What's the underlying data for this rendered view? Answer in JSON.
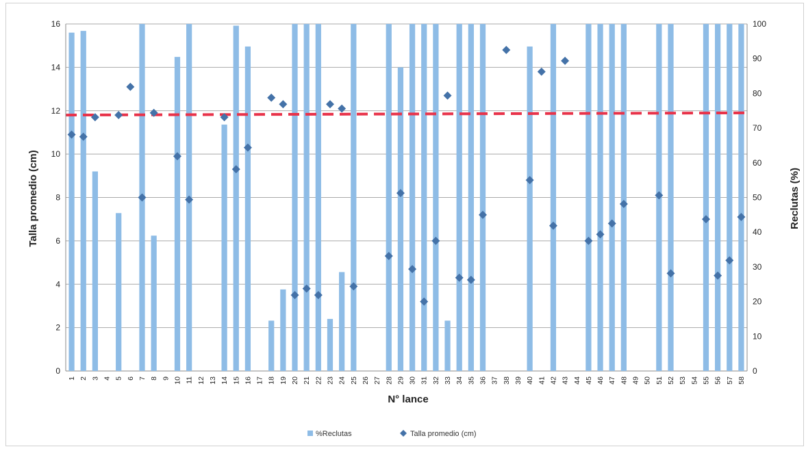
{
  "chart_data": {
    "type": "bar+scatter",
    "xlabel": "N° lance",
    "ylabel_left": "Talla promedio (cm)",
    "ylabel_right": "Reclutas (%)",
    "ylim_left": [
      0,
      16
    ],
    "yticks_left": [
      0,
      2,
      4,
      6,
      8,
      10,
      12,
      14,
      16
    ],
    "ylim_right": [
      0,
      100
    ],
    "yticks_right": [
      0,
      10,
      20,
      30,
      40,
      50,
      60,
      70,
      80,
      90,
      100
    ],
    "grid": true,
    "legend_position": "bottom",
    "categories": [
      "1",
      "2",
      "3",
      "4",
      "5",
      "6",
      "7",
      "8",
      "9",
      "10",
      "11",
      "12",
      "13",
      "14",
      "15",
      "16",
      "17",
      "18",
      "19",
      "20",
      "21",
      "22",
      "23",
      "24",
      "25",
      "26",
      "27",
      "28",
      "29",
      "30",
      "31",
      "32",
      "33",
      "34",
      "35",
      "36",
      "37",
      "38",
      "39",
      "40",
      "41",
      "42",
      "43",
      "44",
      "45",
      "46",
      "47",
      "48",
      "49",
      "50",
      "51",
      "52",
      "53",
      "54",
      "55",
      "56",
      "57",
      "58"
    ],
    "series": [
      {
        "name": "%Reclutas",
        "type": "bar",
        "axis": "right",
        "color": "#8ebce6",
        "values": [
          97.5,
          98,
          57.5,
          0,
          45.5,
          0,
          100,
          39,
          0,
          90.5,
          100,
          0,
          0,
          71,
          99.5,
          93.5,
          0,
          14.5,
          23.5,
          100,
          100,
          100,
          15,
          28.5,
          100,
          0,
          0,
          100,
          87.5,
          100,
          100,
          100,
          14.5,
          100,
          100,
          100,
          0,
          0,
          0,
          93.5,
          0,
          100,
          0,
          0,
          100,
          100,
          100,
          100,
          0,
          0,
          100,
          100,
          0,
          0,
          100,
          100,
          100,
          100
        ]
      },
      {
        "name": "Talla promedio (cm)",
        "type": "scatter",
        "axis": "left",
        "marker": "diamond",
        "color": "#4472a8",
        "values": [
          10.9,
          10.8,
          11.7,
          null,
          11.8,
          13.1,
          8.0,
          11.9,
          null,
          9.9,
          7.9,
          null,
          null,
          11.7,
          9.3,
          10.3,
          null,
          12.6,
          12.3,
          3.5,
          3.8,
          3.5,
          12.3,
          12.1,
          3.9,
          null,
          null,
          5.3,
          8.2,
          4.7,
          3.2,
          6.0,
          12.7,
          4.3,
          4.2,
          7.2,
          null,
          14.8,
          null,
          8.8,
          13.8,
          6.7,
          14.3,
          null,
          6.0,
          6.3,
          6.8,
          7.7,
          null,
          null,
          8.1,
          4.5,
          null,
          null,
          7.0,
          4.4,
          5.1,
          7.1
        ]
      }
    ],
    "reference_line": {
      "color": "#e8334a",
      "style": "dashed",
      "axis": "left",
      "start": 11.8,
      "end": 11.9
    }
  }
}
